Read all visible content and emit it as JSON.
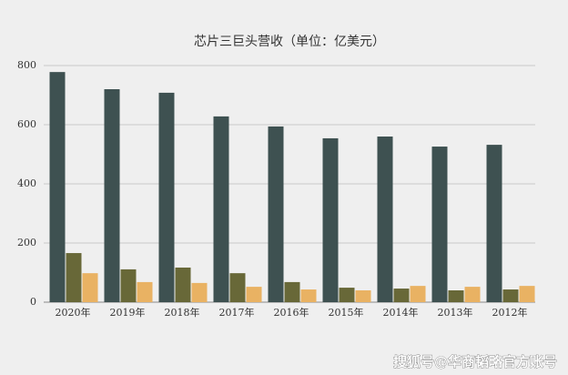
{
  "chart_data": {
    "type": "bar",
    "title": "芯片三巨头营收（单位：亿美元）",
    "categories": [
      "2020年",
      "2019年",
      "2018年",
      "2017年",
      "2016年",
      "2015年",
      "2014年",
      "2013年",
      "2012年"
    ],
    "series": [
      {
        "color": "#3e5151",
        "values": [
          778,
          720,
          708,
          628,
          594,
          554,
          560,
          526,
          532
        ]
      },
      {
        "color": "#686838",
        "values": [
          166,
          111,
          117,
          98,
          68,
          49,
          46,
          40,
          43
        ]
      },
      {
        "color": "#e9b263",
        "values": [
          98,
          68,
          65,
          52,
          43,
          40,
          55,
          52,
          55
        ]
      }
    ],
    "ylim": [
      0,
      800
    ],
    "yticks": [
      0,
      200,
      400,
      600,
      800
    ],
    "grid": true,
    "watermark": "搜狐号@华商韬略官方账号"
  }
}
